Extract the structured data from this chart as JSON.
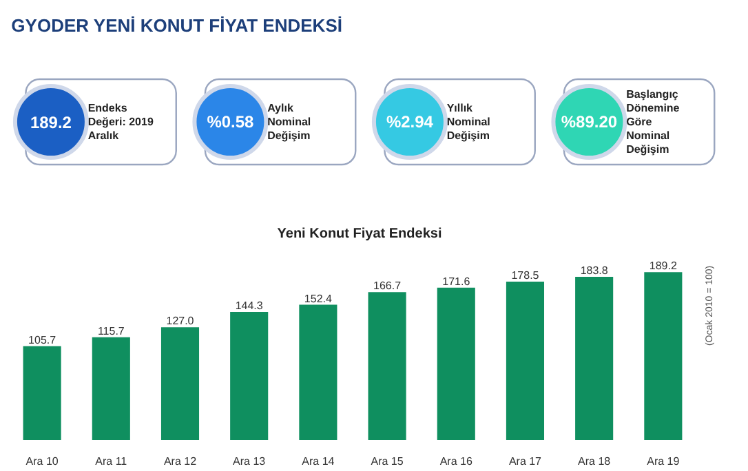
{
  "chart_data": [
    {
      "type": "other",
      "title": "GYODER YENİ KONUT FİYAT ENDEKSİ",
      "annotations": [
        "189.2",
        "Endeks\nDeğeri: 2019\nAralık",
        "%0.58",
        "Aylık\nNominal\nDeğişim",
        "%2.94",
        "Yıllık\nNominal\nDeğişim",
        "%89.20",
        "Başlangıç\nDönemine\nGöre\nNominal\nDeğişim"
      ],
      "colors": [
        "#1b5fc4",
        "#2b86e8",
        "#35c9e3",
        "#2fd6b4"
      ]
    },
    {
      "type": "bar",
      "title": "Yeni Konut Fiyat Endeksi",
      "categories": [
        "Ara 10",
        "Ara 11",
        "Ara 12",
        "Ara 13",
        "Ara 14",
        "Ara 15",
        "Ara 16",
        "Ara 17",
        "Ara 18",
        "Ara 19"
      ],
      "values": [
        105.7,
        115.7,
        127.0,
        144.3,
        152.4,
        166.7,
        171.6,
        178.5,
        183.8,
        189.2
      ],
      "value_labels": [
        "105.7",
        "115.7",
        "127.0",
        "144.3",
        "152.4",
        "166.7",
        "171.6",
        "178.5",
        "183.8",
        "189.2"
      ],
      "color": "#0f8f5f",
      "annotations": [
        "(Ocak 2010 = 100)"
      ]
    }
  ]
}
